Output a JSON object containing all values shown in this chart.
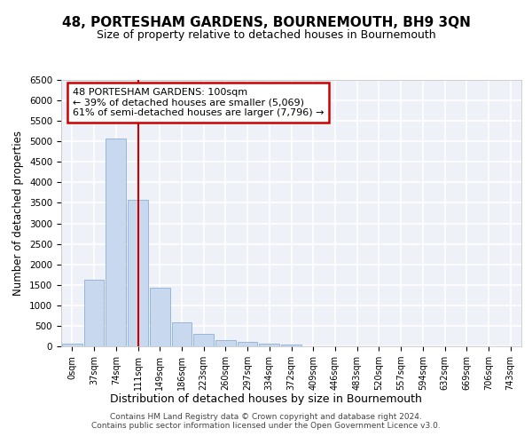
{
  "title": "48, PORTESHAM GARDENS, BOURNEMOUTH, BH9 3QN",
  "subtitle": "Size of property relative to detached houses in Bournemouth",
  "xlabel": "Distribution of detached houses by size in Bournemouth",
  "ylabel": "Number of detached properties",
  "bar_color": "#c8d8ee",
  "bar_edge_color": "#8ab0d8",
  "background_color": "#eef2f8",
  "grid_color": "#ffffff",
  "vline_x_index": 3,
  "vline_color": "#cc0000",
  "annotation_text": "48 PORTESHAM GARDENS: 100sqm\n← 39% of detached houses are smaller (5,069)\n61% of semi-detached houses are larger (7,796) →",
  "annotation_box_color": "#cc0000",
  "footer1": "Contains HM Land Registry data © Crown copyright and database right 2024.",
  "footer2": "Contains public sector information licensed under the Open Government Licence v3.0.",
  "categories": [
    "0sqm",
    "37sqm",
    "74sqm",
    "111sqm",
    "149sqm",
    "186sqm",
    "223sqm",
    "260sqm",
    "297sqm",
    "334sqm",
    "372sqm",
    "409sqm",
    "446sqm",
    "483sqm",
    "520sqm",
    "557sqm",
    "594sqm",
    "632sqm",
    "669sqm",
    "706sqm",
    "743sqm"
  ],
  "bar_heights": [
    75,
    1630,
    5080,
    3580,
    1420,
    580,
    300,
    150,
    100,
    55,
    50,
    8,
    5,
    2,
    1,
    0,
    0,
    0,
    0,
    0,
    0
  ],
  "ylim": [
    0,
    6500
  ],
  "yticks": [
    0,
    500,
    1000,
    1500,
    2000,
    2500,
    3000,
    3500,
    4000,
    4500,
    5000,
    5500,
    6000,
    6500
  ]
}
